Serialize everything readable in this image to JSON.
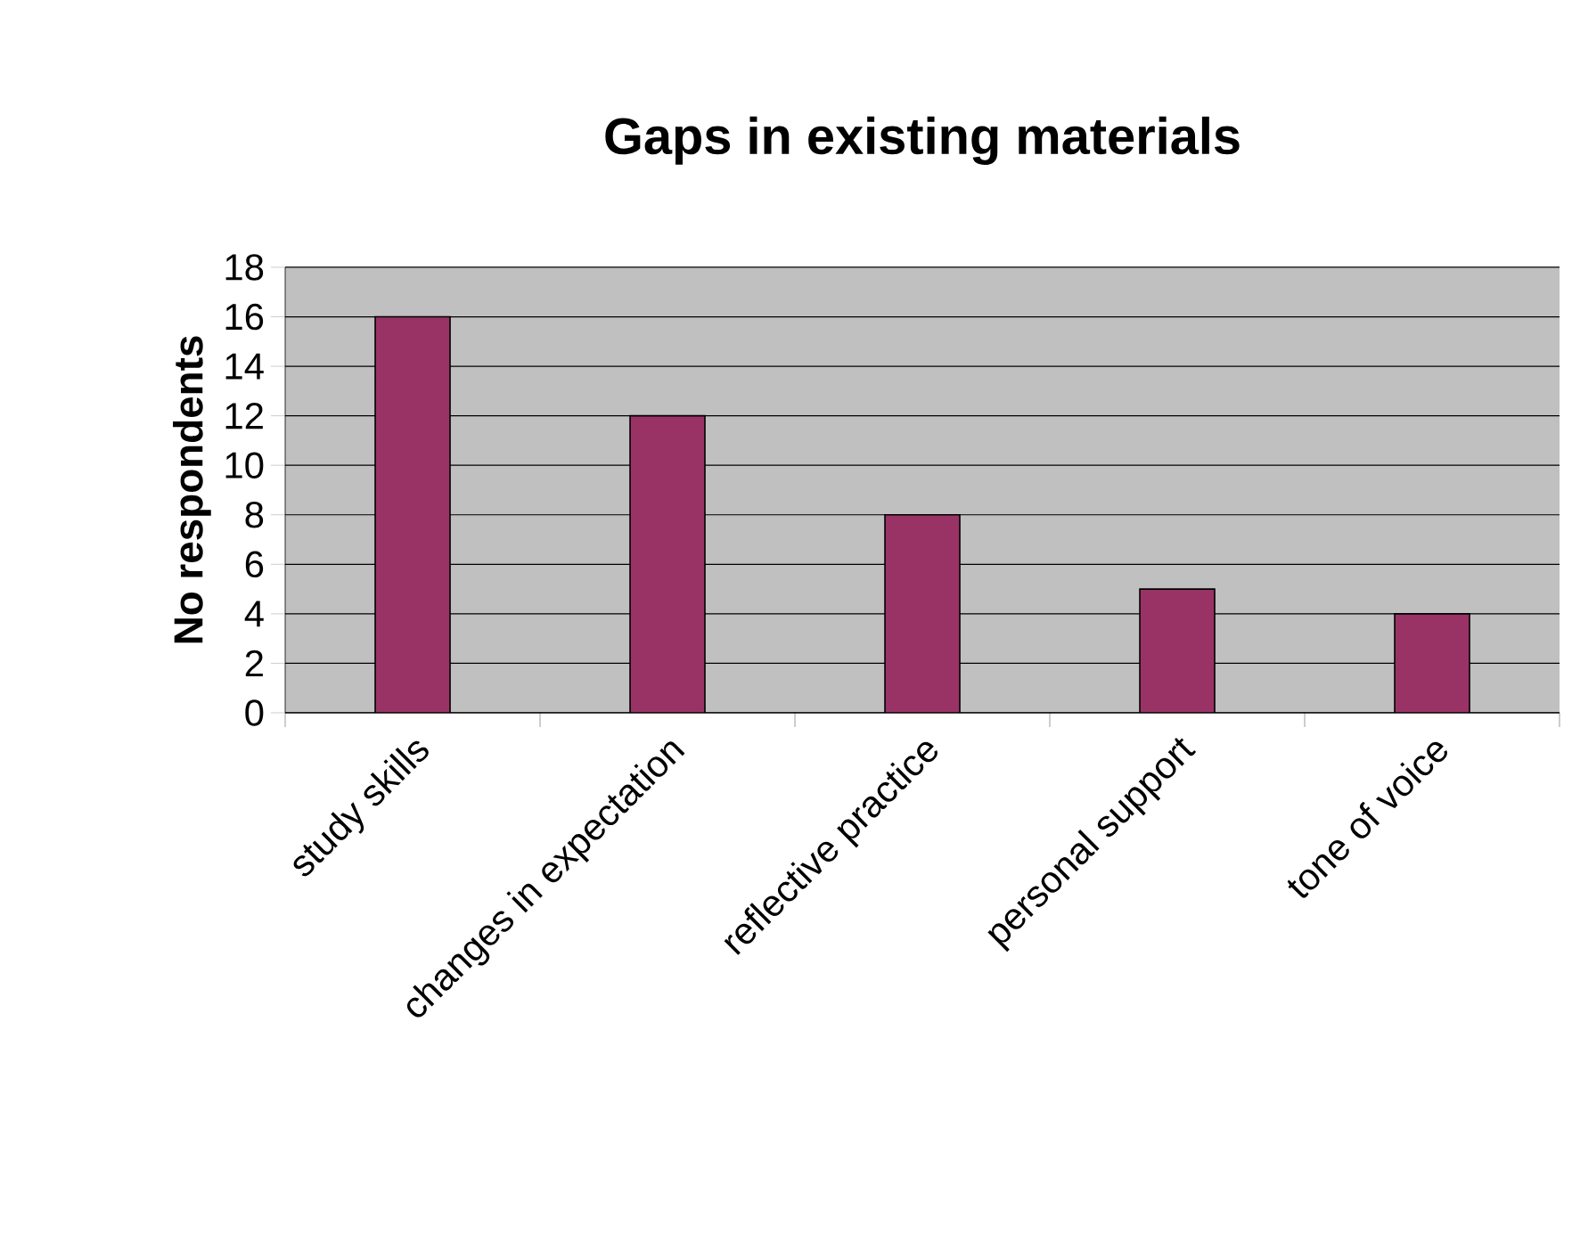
{
  "chart_data": {
    "type": "bar",
    "title": "Gaps in existing materials",
    "ylabel": "No respondents",
    "categories": [
      "study skills",
      "changes in expectation",
      "reflective practice",
      "personal support",
      "tone of voice"
    ],
    "values": [
      16,
      12,
      8,
      5,
      4
    ],
    "color": "#993366",
    "ylim": [
      0,
      18
    ],
    "yticks": [
      0,
      2,
      4,
      6,
      8,
      10,
      12,
      14,
      16,
      18
    ],
    "grid": "y"
  }
}
